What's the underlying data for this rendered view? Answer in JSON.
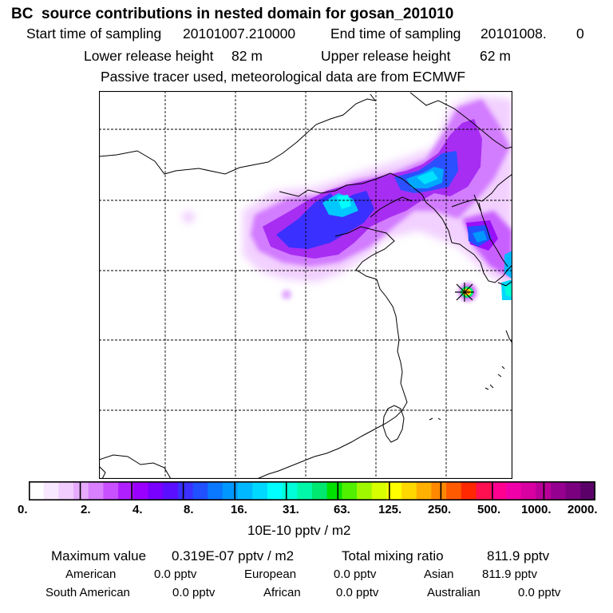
{
  "header": {
    "title": "BC  source contributions in nested domain for gosan_201010",
    "start_label": "Start time of sampling",
    "start_value": "20101007.210000",
    "end_label": "End time of sampling",
    "end_value": "20101008.",
    "end_suffix": "0",
    "lower_label": "Lower release height",
    "lower_value": "82 m",
    "upper_label": "Upper release height",
    "upper_value": "62 m",
    "note": "Passive tracer used, meteorological data are from ECMWF"
  },
  "chart_data": {
    "type": "heatmap",
    "title": "BC  source contributions in nested domain for gosan_201010",
    "grid": true,
    "colorbar": {
      "tick_labels": [
        "0.",
        "2.",
        "4.",
        "8.",
        "16.",
        "31.",
        "63.",
        "125.",
        "250.",
        "500.",
        "1000.",
        "2000."
      ],
      "unit_label": "10E-10 pptv / m2",
      "colors": [
        "#ffffff",
        "#f8e8ff",
        "#f0ccff",
        "#e6aaff",
        "#d880ff",
        "#c850ff",
        "#b020ff",
        "#9a00ff",
        "#7a00ff",
        "#5a10ff",
        "#3a30ff",
        "#2050ff",
        "#0a78ff",
        "#0098ff",
        "#00b8ff",
        "#00d8ff",
        "#00ffff",
        "#00ffd8",
        "#00f8a8",
        "#00e870",
        "#00e000",
        "#50f000",
        "#a0f800",
        "#d8ff00",
        "#ffff00",
        "#ffd800",
        "#ffb000",
        "#ff8800",
        "#ff5a00",
        "#ff2800",
        "#ff1050",
        "#ff0090",
        "#f000a8",
        "#d800a0",
        "#b80098",
        "#960090",
        "#7a0080",
        "#5a0068"
      ]
    },
    "receptor": "gosan",
    "maximum_value": "0.319E-07 pptv / m2",
    "total_mixing_ratio": "811.9 pptv"
  },
  "stats": {
    "max_label": "Maximum value",
    "max_value": "0.319E-07 pptv / m2",
    "total_label": "Total mixing ratio",
    "total_value": "811.9 pptv",
    "regions": [
      {
        "name": "American",
        "value": "0.0 pptv"
      },
      {
        "name": "European",
        "value": "0.0 pptv"
      },
      {
        "name": "Asian",
        "value": "811.9 pptv"
      },
      {
        "name": "South American",
        "value": "0.0 pptv"
      },
      {
        "name": "African",
        "value": "0.0 pptv"
      },
      {
        "name": "Australian",
        "value": "0.0 pptv"
      }
    ]
  }
}
